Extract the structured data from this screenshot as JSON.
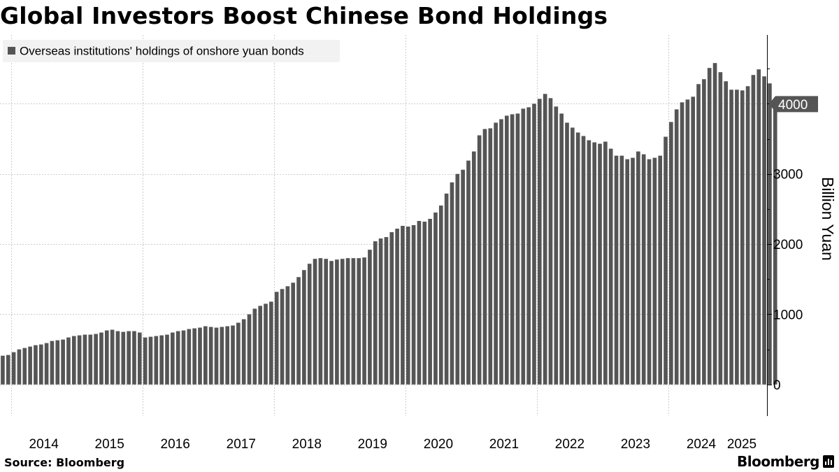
{
  "title": "Global Investors Boost Chinese Bond Holdings",
  "source": "Source: Bloomberg",
  "brand": "Bloomberg",
  "colors": {
    "bar": "#555555",
    "grid": "#cccccc",
    "legend_bg": "#f2f2f2",
    "badge": "#555555"
  },
  "chart_data": {
    "type": "bar",
    "legend": {
      "label": "Overseas institutions' holdings of onshore yuan bonds",
      "placement": "top-left"
    },
    "ylabel": "Billion Yuan",
    "ylim": [
      -450,
      4980
    ],
    "yticks": [
      0,
      1000,
      2000,
      3000,
      4000
    ],
    "xtick_labels": [
      "2014",
      "2015",
      "2016",
      "2017",
      "2018",
      "2019",
      "2020",
      "2021",
      "2022",
      "2023",
      "2024",
      "2025"
    ],
    "x_start": "2013-11",
    "x_end": "2025-07",
    "last_value_label": "4000",
    "values": [
      410,
      420,
      460,
      500,
      520,
      540,
      560,
      570,
      590,
      620,
      630,
      640,
      670,
      690,
      700,
      710,
      710,
      720,
      740,
      770,
      780,
      760,
      750,
      760,
      760,
      740,
      670,
      680,
      690,
      700,
      710,
      740,
      760,
      770,
      790,
      800,
      810,
      830,
      820,
      810,
      820,
      830,
      840,
      880,
      930,
      1000,
      1080,
      1120,
      1150,
      1180,
      1320,
      1360,
      1400,
      1450,
      1530,
      1630,
      1720,
      1790,
      1800,
      1790,
      1760,
      1780,
      1790,
      1800,
      1800,
      1800,
      1810,
      1920,
      2040,
      2080,
      2100,
      2170,
      2220,
      2260,
      2250,
      2270,
      2330,
      2320,
      2360,
      2450,
      2550,
      2720,
      2880,
      3000,
      3060,
      3190,
      3320,
      3550,
      3640,
      3650,
      3730,
      3780,
      3830,
      3850,
      3860,
      3930,
      3950,
      4000,
      4070,
      4140,
      4080,
      3960,
      3860,
      3730,
      3660,
      3590,
      3540,
      3480,
      3450,
      3430,
      3460,
      3360,
      3260,
      3260,
      3210,
      3230,
      3320,
      3280,
      3210,
      3230,
      3260,
      3530,
      3740,
      3920,
      4020,
      4060,
      4100,
      4280,
      4350,
      4510,
      4580,
      4450,
      4320,
      4200,
      4200,
      4190,
      4250,
      4410,
      4490,
      4390,
      4290,
      4000
    ]
  }
}
